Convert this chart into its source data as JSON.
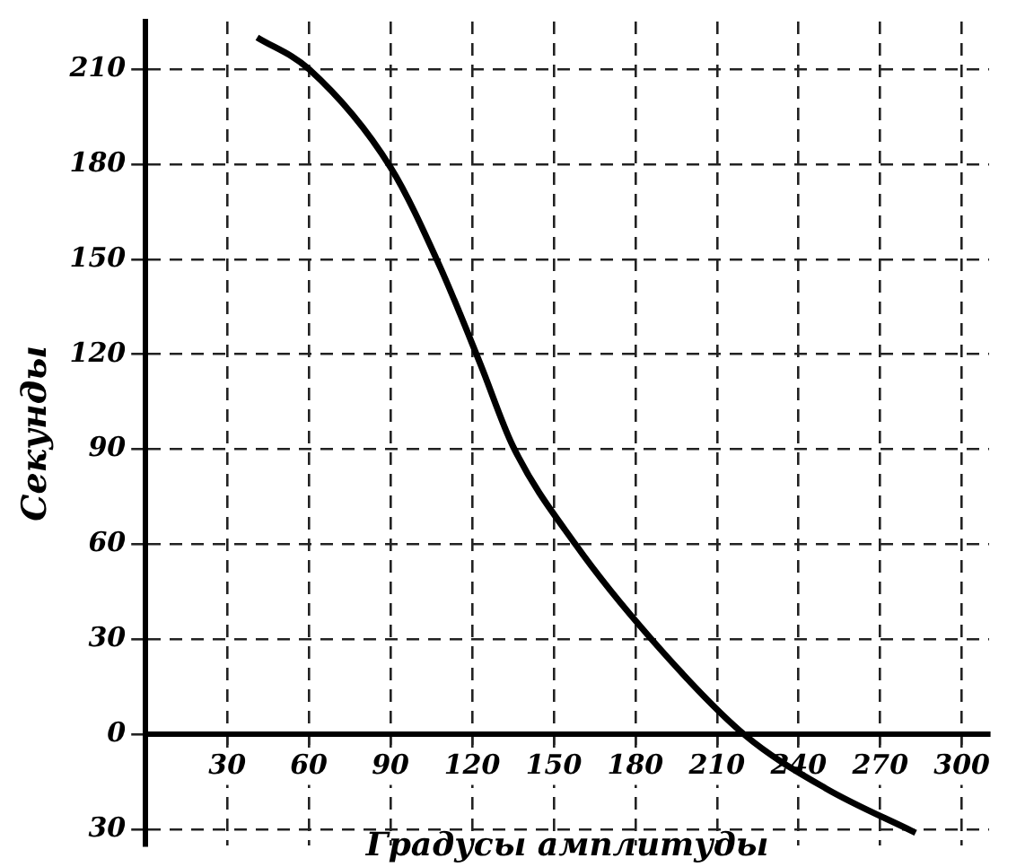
{
  "chart_data": {
    "type": "line",
    "xlabel": "Градусы амплитуды",
    "ylabel": "Секунды",
    "series": [
      {
        "color": "#000000",
        "x": [
          41,
          60,
          90,
          108,
          123,
          135,
          158,
          186,
          220,
          250,
          283
        ],
        "values": [
          220,
          210,
          179,
          148,
          117,
          91,
          60,
          30,
          0,
          -17,
          -31
        ]
      }
    ],
    "xlim": [
      0,
      310
    ],
    "xticks": [
      30,
      60,
      90,
      120,
      150,
      180,
      210,
      240,
      270,
      300
    ],
    "ylim": [
      -35,
      225
    ],
    "yticks": [
      {
        "value": -30,
        "label": "30"
      },
      0,
      30,
      60,
      90,
      120,
      150,
      180,
      210
    ],
    "grid": true,
    "legend": false,
    "marker": "none",
    "line_style": "solid"
  }
}
